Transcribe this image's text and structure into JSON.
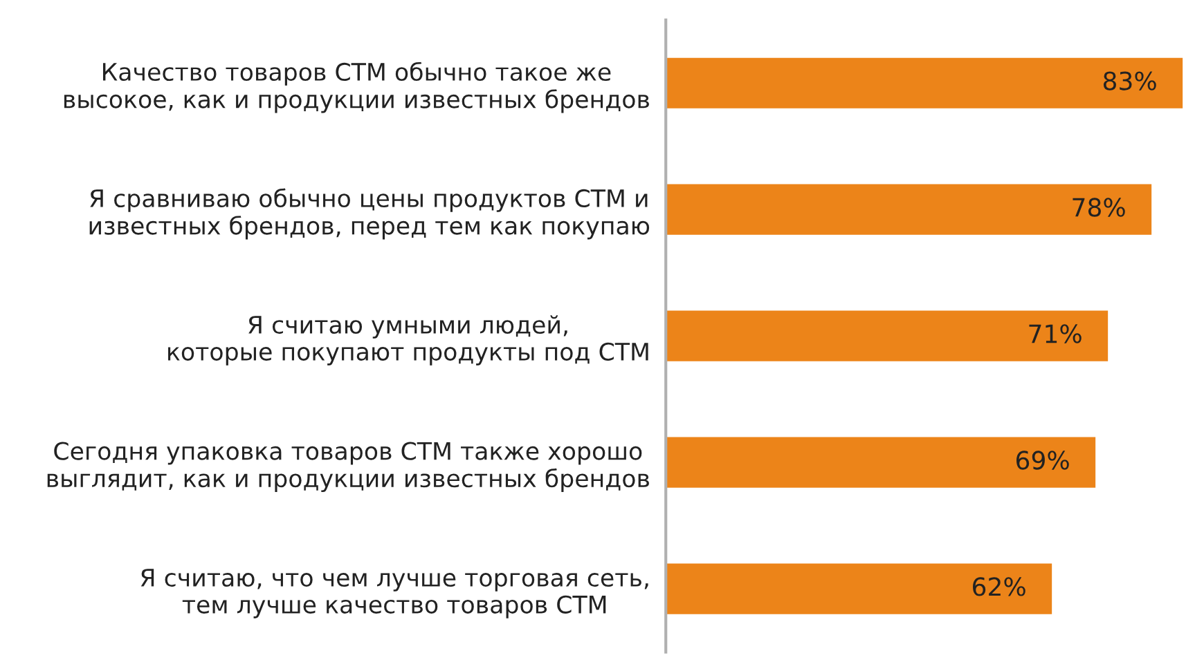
{
  "chart_data": {
    "type": "bar",
    "orientation": "horizontal",
    "categories": [
      "Качество товаров СТМ обычно такое же\nвысокое, как и продукции известных брендов",
      "Я сравниваю обычно цены продуктов СТМ и\nизвестных брендов, перед тем как покупаю",
      "Я считаю умными людей,\nкоторые покупают продукты под СТМ",
      "Сегодня упаковка товаров СТМ также хорошо\nвыглядит, как и продукции известных брендов",
      "Я считаю, что чем лучше торговая сеть,\nтем лучше качество товаров СТМ"
    ],
    "values": [
      83,
      78,
      71,
      69,
      62
    ],
    "value_labels": [
      "83%",
      "78%",
      "71%",
      "69%",
      "62%"
    ],
    "color": "#ec8419",
    "grid": false,
    "legend": false
  }
}
